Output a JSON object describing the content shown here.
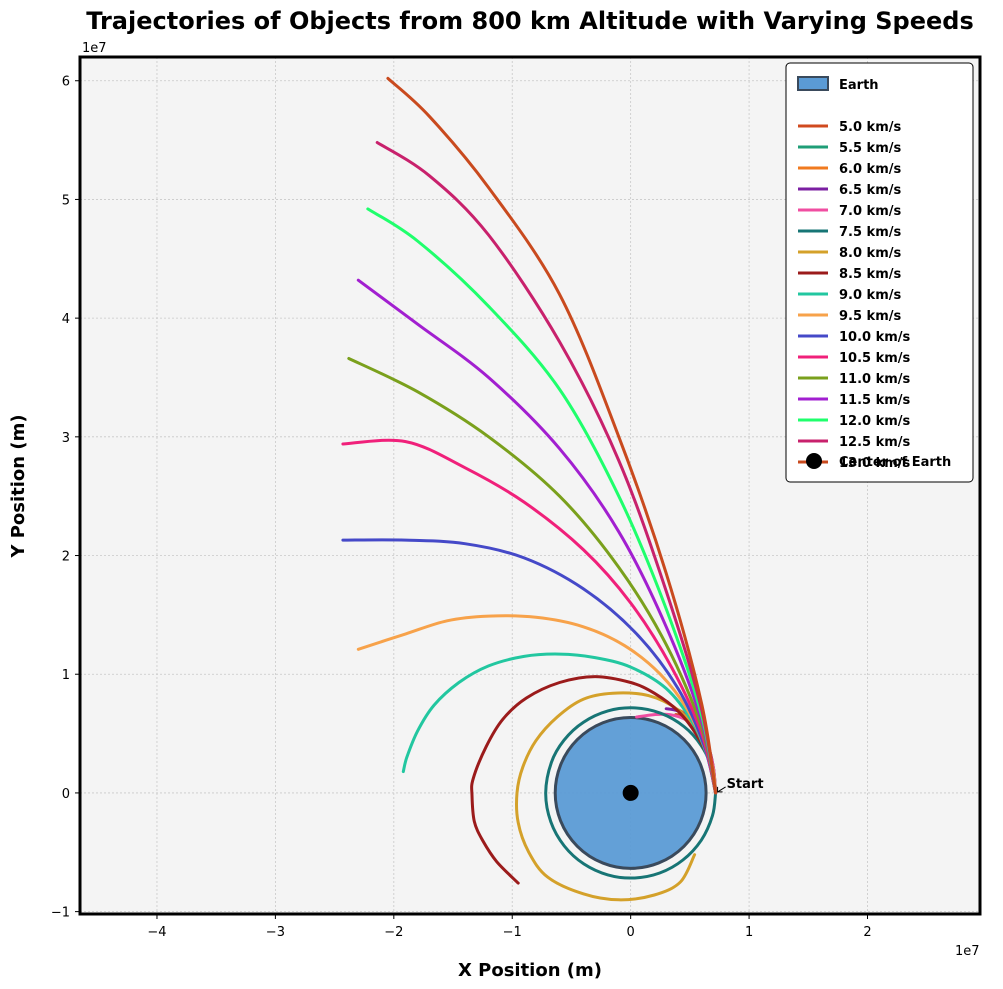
{
  "chart_data": {
    "type": "line",
    "title": "Trajectories of Objects from 800 km Altitude with Varying Speeds",
    "xlabel": "X Position (m)",
    "ylabel": "Y Position (m)",
    "x_multiplier": "1e7",
    "y_multiplier": "1e7",
    "xlim": [
      -4.65,
      2.95
    ],
    "ylim": [
      -1.02,
      6.2
    ],
    "xticks": [
      -4,
      -3,
      -2,
      -1,
      0,
      1,
      2
    ],
    "yticks": [
      -1,
      0,
      1,
      2,
      3,
      4,
      5,
      6
    ],
    "xtick_labels": [
      "−4",
      "−3",
      "−2",
      "−1",
      "0",
      "1",
      "2"
    ],
    "ytick_labels": [
      "−1",
      "0",
      "1",
      "2",
      "3",
      "4",
      "5",
      "6"
    ],
    "grid": true,
    "legend_position": "top-right",
    "earth": {
      "label": "Earth",
      "center": [
        0,
        0
      ],
      "radius": 0.6371,
      "fill": "#5b9bd5",
      "edge": "#3a4a5c"
    },
    "center_marker": {
      "label": "Center of Earth",
      "x": 0,
      "y": 0,
      "color": "#000000"
    },
    "annotation": {
      "text": "Start",
      "x": 0.7171,
      "y": 0.0
    },
    "series": [
      {
        "name": "5.0 km/s",
        "color": "#d04a1f",
        "points": [
          [
            0.7171,
            0.0
          ],
          [
            0.7,
            0.18
          ],
          [
            0.66,
            0.35
          ],
          [
            0.6,
            0.5
          ],
          [
            0.52,
            0.6
          ],
          [
            0.45,
            0.65
          ],
          [
            0.38,
            0.66
          ]
        ]
      },
      {
        "name": "5.5 km/s",
        "color": "#1f9e77",
        "points": [
          [
            0.7171,
            0.0
          ],
          [
            0.7,
            0.2
          ],
          [
            0.65,
            0.38
          ],
          [
            0.58,
            0.53
          ],
          [
            0.5,
            0.64
          ],
          [
            0.4,
            0.7
          ]
        ]
      },
      {
        "name": "6.0 km/s",
        "color": "#f07a1f",
        "points": [
          [
            0.7171,
            0.0
          ],
          [
            0.7,
            0.2
          ],
          [
            0.66,
            0.38
          ],
          [
            0.59,
            0.53
          ],
          [
            0.5,
            0.64
          ],
          [
            0.42,
            0.69
          ]
        ]
      },
      {
        "name": "6.5 km/s",
        "color": "#7b1fa2",
        "points": [
          [
            0.7171,
            0.0
          ],
          [
            0.7,
            0.2
          ],
          [
            0.66,
            0.38
          ],
          [
            0.59,
            0.53
          ],
          [
            0.5,
            0.63
          ],
          [
            0.4,
            0.69
          ],
          [
            0.3,
            0.71
          ]
        ]
      },
      {
        "name": "7.0 km/s",
        "color": "#f04ea1",
        "points": [
          [
            0.7171,
            0.0
          ],
          [
            0.7,
            0.2
          ],
          [
            0.65,
            0.39
          ],
          [
            0.57,
            0.53
          ],
          [
            0.46,
            0.62
          ],
          [
            0.33,
            0.66
          ],
          [
            0.2,
            0.66
          ],
          [
            0.05,
            0.64
          ]
        ]
      },
      {
        "name": "7.5 km/s",
        "color": "#177575",
        "points": [
          [
            0.7171,
            0.0
          ],
          [
            0.687,
            0.206
          ],
          [
            0.596,
            0.399
          ],
          [
            0.45,
            0.56
          ],
          [
            0.255,
            0.671
          ],
          [
            0.0317,
            0.7164
          ],
          [
            -0.1923,
            0.6909
          ],
          [
            -0.3986,
            0.5962
          ],
          [
            -0.5629,
            0.4442
          ],
          [
            -0.6694,
            0.2571
          ],
          [
            -0.7171,
            0.0
          ],
          [
            -0.6743,
            -0.2435
          ],
          [
            -0.5604,
            -0.4472
          ],
          [
            -0.3957,
            -0.5977
          ],
          [
            -0.1918,
            -0.6909
          ],
          [
            0.0251,
            -0.7166
          ],
          [
            0.2449,
            -0.6742
          ],
          [
            0.4413,
            -0.5651
          ],
          [
            0.5962,
            -0.3986
          ],
          [
            0.6911,
            -0.1914
          ],
          [
            0.7171,
            0.0
          ]
        ]
      },
      {
        "name": "8.0 km/s",
        "color": "#d4a12a",
        "points": [
          [
            0.7171,
            0.0
          ],
          [
            0.683,
            0.257
          ],
          [
            0.567,
            0.516
          ],
          [
            0.4,
            0.7
          ],
          [
            0.15,
            0.82
          ],
          [
            -0.15,
            0.84
          ],
          [
            -0.4,
            0.79
          ],
          [
            -0.62,
            0.64
          ],
          [
            -0.8,
            0.44
          ],
          [
            -0.91,
            0.22
          ],
          [
            -0.96,
            0.0
          ],
          [
            -0.95,
            -0.25
          ],
          [
            -0.86,
            -0.5
          ],
          [
            -0.7,
            -0.71
          ],
          [
            -0.4,
            -0.85
          ],
          [
            -0.1,
            -0.9
          ],
          [
            0.2,
            -0.86
          ],
          [
            0.42,
            -0.75
          ],
          [
            0.54,
            -0.52
          ]
        ]
      },
      {
        "name": "8.5 km/s",
        "color": "#9b1b1b",
        "points": [
          [
            0.7171,
            0.0
          ],
          [
            0.66,
            0.28
          ],
          [
            0.55,
            0.5
          ],
          [
            0.4,
            0.69
          ],
          [
            0.2,
            0.84
          ],
          [
            0.0,
            0.93
          ],
          [
            -0.3,
            0.98
          ],
          [
            -0.6,
            0.93
          ],
          [
            -0.88,
            0.8
          ],
          [
            -1.08,
            0.62
          ],
          [
            -1.22,
            0.39
          ],
          [
            -1.33,
            0.12
          ],
          [
            -1.34,
            -0.02
          ],
          [
            -1.32,
            -0.24
          ],
          [
            -1.25,
            -0.4
          ],
          [
            -1.13,
            -0.58
          ],
          [
            -0.95,
            -0.76
          ]
        ]
      },
      {
        "name": "9.0 km/s",
        "color": "#22c7a0",
        "points": [
          [
            0.7171,
            0.0
          ],
          [
            0.65,
            0.3
          ],
          [
            0.52,
            0.6
          ],
          [
            0.3,
            0.88
          ],
          [
            0.0,
            1.06
          ],
          [
            -0.3,
            1.14
          ],
          [
            -0.6,
            1.17
          ],
          [
            -0.9,
            1.15
          ],
          [
            -1.2,
            1.07
          ],
          [
            -1.45,
            0.93
          ],
          [
            -1.66,
            0.74
          ],
          [
            -1.8,
            0.52
          ],
          [
            -1.89,
            0.3
          ],
          [
            -1.92,
            0.18
          ]
        ]
      },
      {
        "name": "9.5 km/s",
        "color": "#f7a24a",
        "points": [
          [
            0.7171,
            0.0
          ],
          [
            0.64,
            0.34
          ],
          [
            0.48,
            0.7
          ],
          [
            0.25,
            1.0
          ],
          [
            -0.05,
            1.24
          ],
          [
            -0.4,
            1.4
          ],
          [
            -0.8,
            1.48
          ],
          [
            -1.2,
            1.49
          ],
          [
            -1.55,
            1.45
          ],
          [
            -1.9,
            1.34
          ],
          [
            -2.3,
            1.21
          ]
        ]
      },
      {
        "name": "10.0 km/s",
        "color": "#4549c8",
        "points": [
          [
            0.7171,
            0.0
          ],
          [
            0.62,
            0.4
          ],
          [
            0.4,
            0.88
          ],
          [
            0.05,
            1.34
          ],
          [
            -0.4,
            1.72
          ],
          [
            -0.9,
            1.98
          ],
          [
            -1.4,
            2.1
          ],
          [
            -1.9,
            2.13
          ],
          [
            -2.43,
            2.13
          ]
        ]
      },
      {
        "name": "10.5 km/s",
        "color": "#f0207a",
        "points": [
          [
            0.7171,
            0.0
          ],
          [
            0.6,
            0.5
          ],
          [
            0.35,
            1.05
          ],
          [
            0.0,
            1.6
          ],
          [
            -0.4,
            2.05
          ],
          [
            -0.9,
            2.45
          ],
          [
            -1.4,
            2.74
          ],
          [
            -1.9,
            2.96
          ],
          [
            -2.43,
            2.94
          ]
        ]
      },
      {
        "name": "11.0 km/s",
        "color": "#7aa01c",
        "points": [
          [
            0.7171,
            0.0
          ],
          [
            0.6,
            0.55
          ],
          [
            0.3,
            1.25
          ],
          [
            -0.1,
            1.9
          ],
          [
            -0.6,
            2.5
          ],
          [
            -1.2,
            3.0
          ],
          [
            -1.8,
            3.38
          ],
          [
            -2.38,
            3.66
          ]
        ]
      },
      {
        "name": "11.5 km/s",
        "color": "#a21fd0",
        "points": [
          [
            0.7171,
            0.0
          ],
          [
            0.6,
            0.6
          ],
          [
            0.3,
            1.4
          ],
          [
            -0.1,
            2.2
          ],
          [
            -0.6,
            2.9
          ],
          [
            -1.2,
            3.5
          ],
          [
            -1.8,
            3.95
          ],
          [
            -2.3,
            4.32
          ]
        ]
      },
      {
        "name": "12.0 km/s",
        "color": "#1fff6c",
        "points": [
          [
            0.7171,
            0.0
          ],
          [
            0.6,
            0.65
          ],
          [
            0.3,
            1.55
          ],
          [
            -0.1,
            2.5
          ],
          [
            -0.6,
            3.4
          ],
          [
            -1.2,
            4.1
          ],
          [
            -1.8,
            4.65
          ],
          [
            -2.22,
            4.92
          ]
        ]
      },
      {
        "name": "12.5 km/s",
        "color": "#c8216c",
        "points": [
          [
            0.7171,
            0.0
          ],
          [
            0.6,
            0.7
          ],
          [
            0.3,
            1.7
          ],
          [
            -0.1,
            2.8
          ],
          [
            -0.6,
            3.8
          ],
          [
            -1.2,
            4.7
          ],
          [
            -1.7,
            5.2
          ],
          [
            -2.14,
            5.48
          ]
        ]
      },
      {
        "name": "13.0 km/s",
        "color": "#c94a1e",
        "points": [
          [
            0.7171,
            0.0
          ],
          [
            0.6,
            0.75
          ],
          [
            0.3,
            1.85
          ],
          [
            -0.1,
            3.0
          ],
          [
            -0.6,
            4.2
          ],
          [
            -1.2,
            5.1
          ],
          [
            -1.7,
            5.7
          ],
          [
            -2.05,
            6.02
          ]
        ]
      }
    ]
  }
}
